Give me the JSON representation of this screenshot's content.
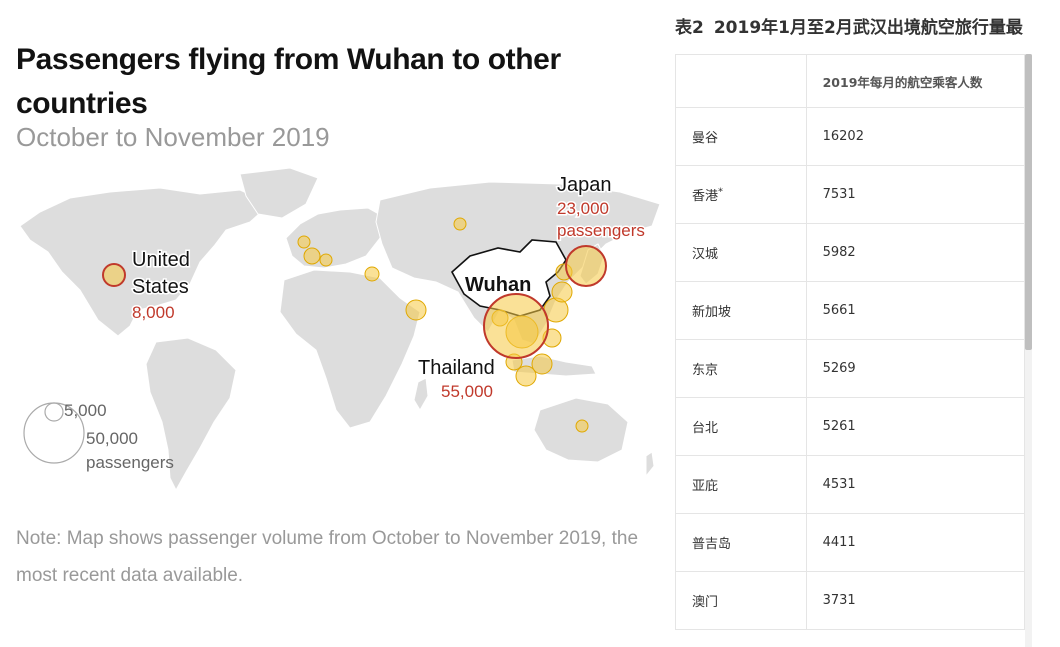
{
  "map": {
    "title": "Passengers flying from Wuhan to other countries",
    "subtitle": "October to November 2019",
    "note": "Note: Map shows passenger volume from October to November 2019, the most recent data available.",
    "origin_label": "Wuhan",
    "callouts": [
      {
        "place": "United States",
        "place_lines": [
          "United",
          "States"
        ],
        "value": "8,000",
        "unit": ""
      },
      {
        "place": "Japan",
        "place_lines": [
          "Japan"
        ],
        "value": "23,000",
        "unit": "passengers"
      },
      {
        "place": "Thailand",
        "place_lines": [
          "Thailand"
        ],
        "value": "55,000",
        "unit": ""
      }
    ],
    "legend": {
      "small": "5,000",
      "large": "50,000",
      "unit": "passengers"
    },
    "colors": {
      "bubble_fill": "#f5c842",
      "bubble_stroke": "#e0a800",
      "highlight_stroke": "#c0392b",
      "value_text": "#c0392b",
      "land": "#dddddd",
      "china": "#ffffff"
    },
    "bubbles": [
      {
        "region": "Japan",
        "passengers": 23000,
        "highlight": true
      },
      {
        "region": "Thailand",
        "passengers": 55000,
        "highlight": true
      },
      {
        "region": "United States",
        "passengers": 8000,
        "highlight": true
      }
    ]
  },
  "table": {
    "caption_num": "表2",
    "caption": "2019年1月至2月武汉出境航空旅行量最",
    "header": [
      "",
      "2019年每月的航空乘客人数"
    ],
    "rows": [
      {
        "city": "曼谷",
        "mark": "",
        "value": "16202"
      },
      {
        "city": "香港",
        "mark": "*",
        "value": "7531"
      },
      {
        "city": "汉城",
        "mark": "",
        "value": "5982"
      },
      {
        "city": "新加坡",
        "mark": "",
        "value": "5661"
      },
      {
        "city": "东京",
        "mark": "",
        "value": "5269"
      },
      {
        "city": "台北",
        "mark": "",
        "value": "5261"
      },
      {
        "city": "亚庇",
        "mark": "",
        "value": "4531"
      },
      {
        "city": "普吉岛",
        "mark": "",
        "value": "4411"
      },
      {
        "city": "澳门",
        "mark": "",
        "value": "3731"
      }
    ]
  }
}
